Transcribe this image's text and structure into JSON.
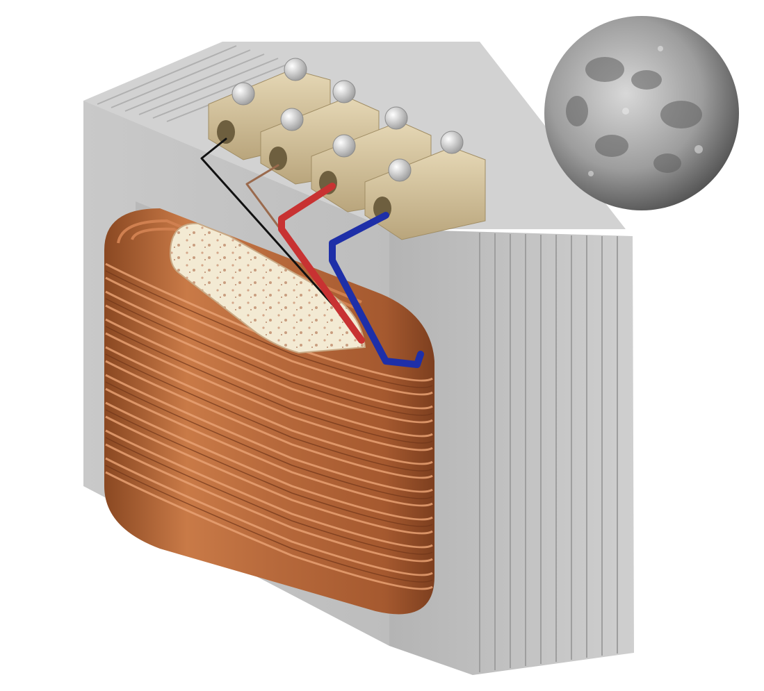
{
  "scene": {
    "background": "#ffffff",
    "subjects": [
      {
        "name": "transformer",
        "icon": "transformer-icon"
      },
      {
        "name": "moon",
        "icon": "moon-icon"
      }
    ],
    "colors": {
      "core": "#c2c2c2",
      "core_shadow": "#a9a9a9",
      "copper": "#b86a3c",
      "copper_light": "#e8a173",
      "copper_dark": "#7d3f1f",
      "bobbin": "#f3ead3",
      "terminal": "#d3c3a0",
      "bolt": "#dcdcdc",
      "wire_black": "#111111",
      "wire_brown": "#9a6a4d",
      "wire_red": "#c83232",
      "wire_blue": "#1e2fa8",
      "moon": "#9a9a9a"
    },
    "terminal_count": 4,
    "wire_colors": [
      "black",
      "brown",
      "red",
      "blue"
    ]
  }
}
